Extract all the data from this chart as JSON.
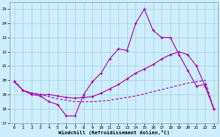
{
  "xlabel": "Windchill (Refroidissement éolien,°C)",
  "background_color": "#cceeff",
  "grid_color": "#aacccc",
  "line_color": "#aa00aa",
  "xlim": [
    -0.5,
    23.5
  ],
  "ylim": [
    17,
    25.5
  ],
  "yticks": [
    17,
    18,
    19,
    20,
    21,
    22,
    23,
    24,
    25
  ],
  "xticks": [
    0,
    1,
    2,
    3,
    4,
    5,
    6,
    7,
    8,
    9,
    10,
    11,
    12,
    13,
    14,
    15,
    16,
    17,
    18,
    19,
    20,
    21,
    22,
    23
  ],
  "s1_x": [
    0,
    1,
    2,
    3,
    4,
    5,
    6,
    7,
    8,
    9,
    10,
    11,
    12,
    13,
    14,
    15,
    16,
    17,
    18,
    19,
    20,
    21,
    22,
    23
  ],
  "s1_y": [
    19.9,
    19.3,
    19.0,
    18.9,
    18.5,
    18.3,
    17.5,
    17.5,
    19.0,
    19.9,
    20.5,
    21.5,
    22.2,
    22.1,
    24.0,
    25.0,
    23.5,
    23.0,
    23.0,
    21.8,
    20.7,
    19.6,
    19.7,
    18.0
  ],
  "s2_x": [
    0,
    1,
    2,
    3,
    4,
    5,
    6,
    7,
    8,
    9,
    10,
    11,
    12,
    13,
    14,
    15,
    16,
    17,
    18,
    19,
    20,
    21,
    22,
    23
  ],
  "s2_y": [
    19.9,
    19.3,
    19.1,
    19.0,
    19.0,
    18.9,
    18.8,
    18.75,
    18.8,
    18.85,
    19.1,
    19.4,
    19.7,
    20.1,
    20.5,
    20.8,
    21.1,
    21.5,
    21.8,
    22.0,
    21.8,
    21.0,
    19.6,
    18.0
  ],
  "s3_x": [
    0,
    1,
    2,
    3,
    4,
    5,
    6,
    7,
    8,
    9,
    10,
    11,
    12,
    13,
    14,
    15,
    16,
    17,
    18,
    19,
    20,
    21,
    22,
    23
  ],
  "s3_y": [
    20.0,
    19.3,
    19.1,
    19.0,
    18.85,
    18.7,
    18.6,
    18.5,
    18.5,
    18.5,
    18.55,
    18.6,
    18.7,
    18.8,
    18.9,
    19.05,
    19.2,
    19.35,
    19.5,
    19.65,
    19.8,
    19.9,
    20.0,
    18.0
  ]
}
